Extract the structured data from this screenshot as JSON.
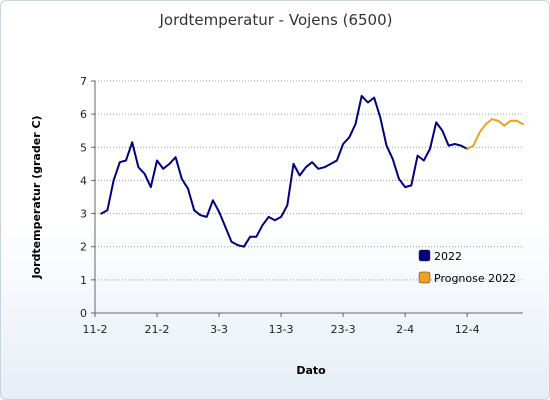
{
  "chart_data": {
    "type": "line",
    "title": "Jordtemperatur - Vojens (6500)",
    "xlabel": "Dato",
    "ylabel": "Jordtemperatur (grader C)",
    "ylim": [
      0,
      7
    ],
    "yticks": [
      0,
      1,
      2,
      3,
      4,
      5,
      6,
      7
    ],
    "x_range": [
      0,
      69
    ],
    "xticks": [
      {
        "label": "11-2",
        "x": 0
      },
      {
        "label": "21-2",
        "x": 10
      },
      {
        "label": "3-3",
        "x": 20
      },
      {
        "label": "13-3",
        "x": 30
      },
      {
        "label": "23-3",
        "x": 40
      },
      {
        "label": "2-4",
        "x": 50
      },
      {
        "label": "12-4",
        "x": 60
      }
    ],
    "grid": true,
    "legend_position": "right",
    "series": [
      {
        "name": "2022",
        "color": "#000080",
        "x": [
          1,
          2,
          3,
          4,
          5,
          6,
          7,
          8,
          9,
          10,
          11,
          12,
          13,
          14,
          15,
          16,
          17,
          18,
          19,
          20,
          21,
          22,
          23,
          24,
          25,
          26,
          27,
          28,
          29,
          30,
          31,
          32,
          33,
          34,
          35,
          36,
          37,
          38,
          39,
          40,
          41,
          42,
          43,
          44,
          45,
          46,
          47,
          48,
          49,
          50,
          51,
          52,
          53,
          54,
          55,
          56,
          57,
          58,
          59,
          60
        ],
        "values": [
          3.0,
          3.1,
          4.0,
          4.55,
          4.6,
          5.15,
          4.4,
          4.2,
          3.8,
          4.6,
          4.35,
          4.5,
          4.7,
          4.05,
          3.75,
          3.1,
          2.95,
          2.9,
          3.4,
          3.05,
          2.6,
          2.15,
          2.05,
          2.0,
          2.3,
          2.3,
          2.65,
          2.9,
          2.8,
          2.9,
          3.25,
          4.5,
          4.15,
          4.4,
          4.55,
          4.35,
          4.4,
          4.5,
          4.6,
          5.1,
          5.3,
          5.7,
          6.55,
          6.35,
          6.5,
          5.9,
          5.05,
          4.65,
          4.05,
          3.8,
          3.85,
          4.75,
          4.6,
          4.95,
          5.75,
          5.5,
          5.05,
          5.1,
          5.05,
          4.95
        ]
      },
      {
        "name": "Prognose 2022",
        "color": "#f0a020",
        "x": [
          60,
          61,
          62,
          63,
          64,
          65,
          66,
          67,
          68,
          69
        ],
        "values": [
          4.95,
          5.05,
          5.45,
          5.7,
          5.85,
          5.8,
          5.65,
          5.8,
          5.8,
          5.7
        ]
      }
    ]
  }
}
